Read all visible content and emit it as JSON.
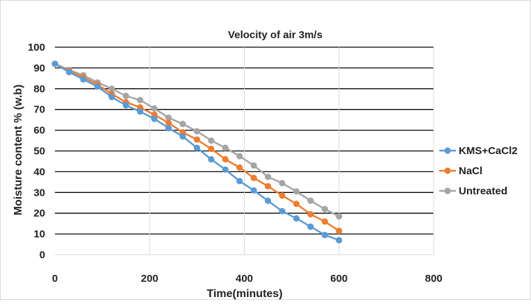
{
  "chart_data": {
    "type": "line",
    "title": "Velocity  of air 3m/s",
    "xlabel": "Time(minutes)",
    "ylabel": "Moisture content % (w.b)",
    "xlim": [
      0,
      800
    ],
    "ylim": [
      0,
      100
    ],
    "x_ticks": [
      0,
      200,
      400,
      600,
      800
    ],
    "y_ticks": [
      0,
      10,
      20,
      30,
      40,
      50,
      60,
      70,
      80,
      90,
      100
    ],
    "grid": {
      "horizontal": true,
      "vertical": true
    },
    "legend": "right",
    "x": [
      0,
      30,
      60,
      90,
      120,
      150,
      180,
      210,
      240,
      270,
      300,
      330,
      360,
      390,
      420,
      450,
      480,
      510,
      540,
      570,
      600
    ],
    "series": [
      {
        "name": "KMS+CaCl2",
        "color": "#5B9BD5",
        "values": [
          92,
          88,
          84.5,
          81,
          76,
          72,
          69,
          65.5,
          61,
          57,
          51.5,
          46,
          41,
          35.5,
          31,
          26,
          21,
          17.5,
          13.5,
          9.5,
          7
        ]
      },
      {
        "name": "NaCl",
        "color": "#ED7D31",
        "values": [
          92,
          88.5,
          85.5,
          82,
          77.5,
          73.5,
          71,
          67.5,
          63.5,
          59,
          55.5,
          51,
          46,
          42,
          37,
          33,
          28.5,
          24.5,
          19.5,
          16,
          11.5
        ]
      },
      {
        "name": "Untreated",
        "color": "#A5A5A5",
        "values": [
          92,
          89,
          86.5,
          83,
          80,
          76.5,
          74.5,
          70.5,
          66,
          63,
          59.5,
          55,
          51.5,
          47.5,
          43,
          37.5,
          34.5,
          30.5,
          26,
          22,
          18.5
        ]
      }
    ]
  }
}
